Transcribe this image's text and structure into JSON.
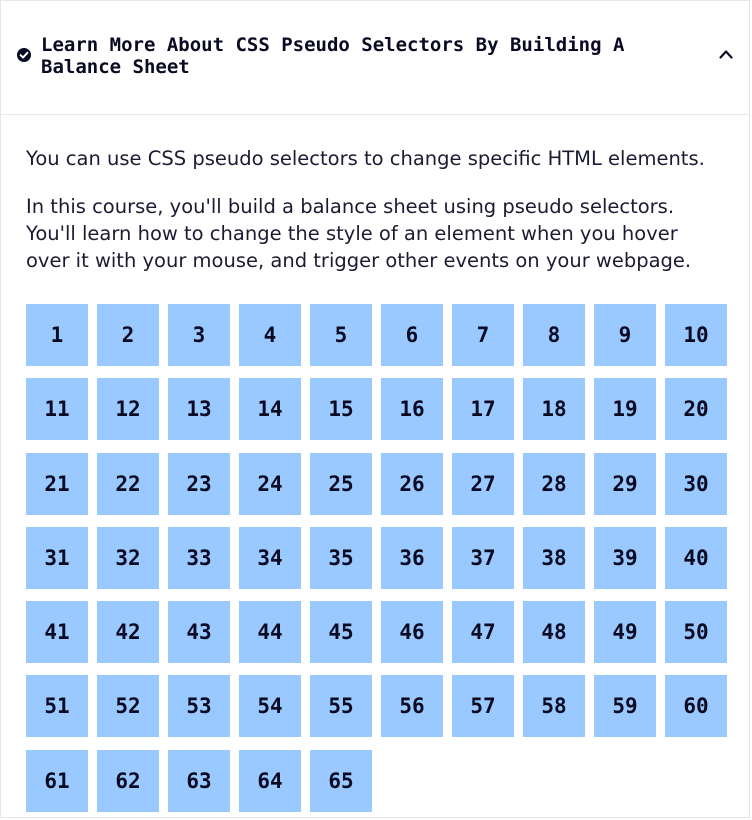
{
  "header": {
    "status_icon": "check-circle-icon",
    "title": "Learn More About CSS Pseudo Selectors By Building A Balance Sheet",
    "toggle_icon": "chevron-up-icon"
  },
  "description": {
    "paragraphs": [
      "You can use CSS pseudo selectors to change specific HTML elements.",
      "In this course, you'll build a balance sheet using pseudo selectors. You'll learn how to change the style of an element when you hover over it with your mouse, and trigger other events on your webpage."
    ]
  },
  "steps": {
    "labels": [
      "1",
      "2",
      "3",
      "4",
      "5",
      "6",
      "7",
      "8",
      "9",
      "10",
      "11",
      "12",
      "13",
      "14",
      "15",
      "16",
      "17",
      "18",
      "19",
      "20",
      "21",
      "22",
      "23",
      "24",
      "25",
      "26",
      "27",
      "28",
      "29",
      "30",
      "31",
      "32",
      "33",
      "34",
      "35",
      "36",
      "37",
      "38",
      "39",
      "40",
      "41",
      "42",
      "43",
      "44",
      "45",
      "46",
      "47",
      "48",
      "49",
      "50",
      "51",
      "52",
      "53",
      "54",
      "55",
      "56",
      "57",
      "58",
      "59",
      "60",
      "61",
      "62",
      "63",
      "64",
      "65"
    ]
  },
  "colors": {
    "step_background": "#99c9ff",
    "text": "#0a0a23"
  }
}
